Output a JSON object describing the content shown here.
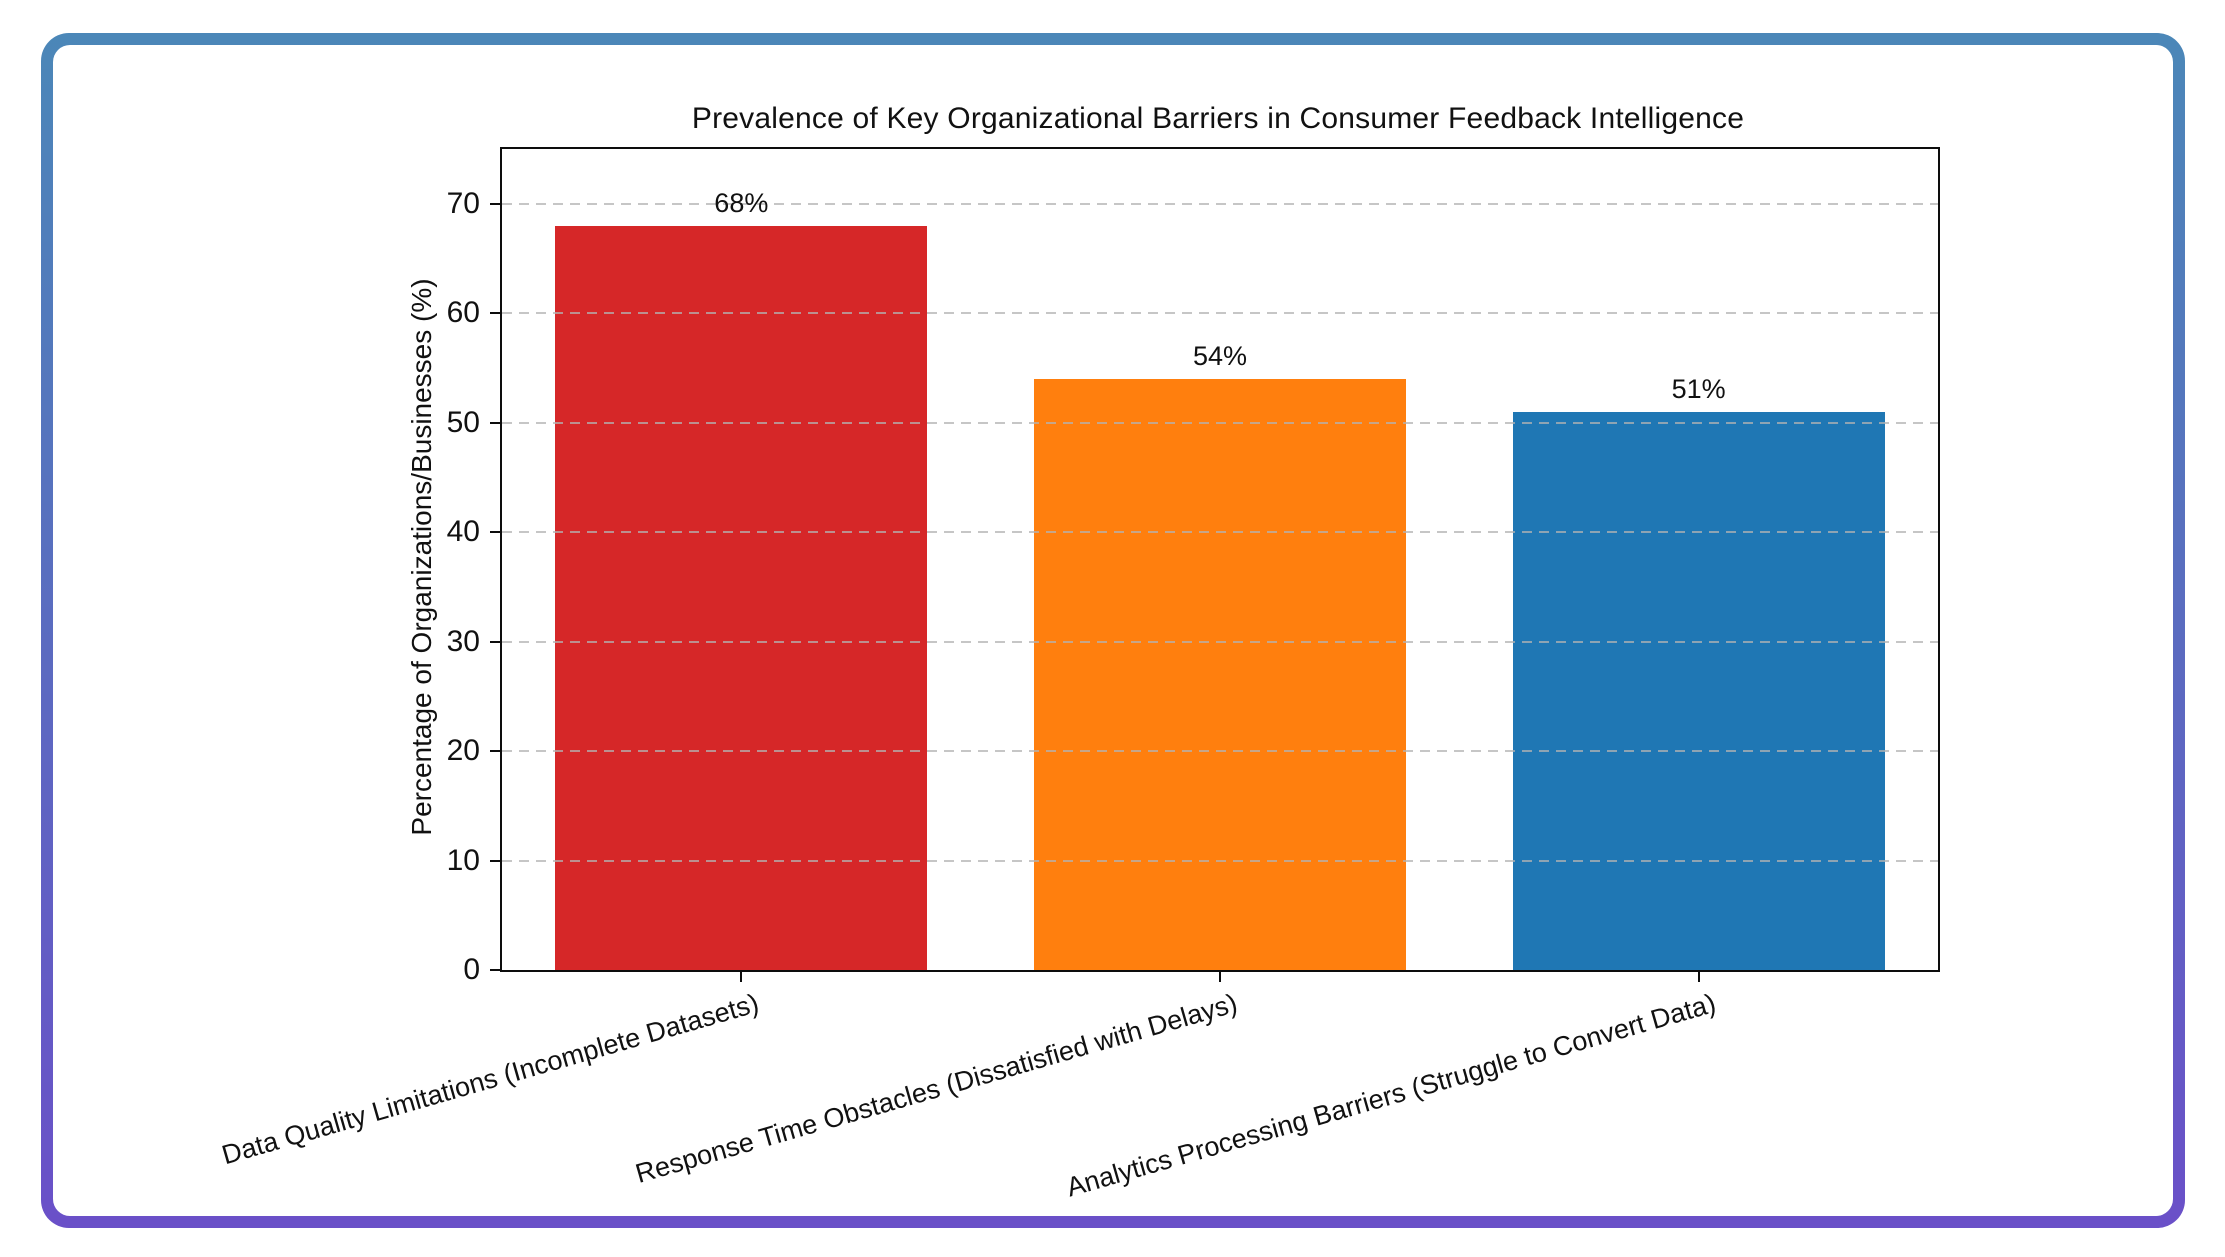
{
  "card": {
    "border_gradient_top": "#4b87b8",
    "border_gradient_bottom": "#6a50c8",
    "background": "#ffffff"
  },
  "chart_data": {
    "type": "bar",
    "title": "Prevalence of Key Organizational Barriers in Consumer Feedback Intelligence",
    "xlabel": "",
    "ylabel": "Percentage of Organizations/Businesses (%)",
    "categories": [
      "Data Quality Limitations (Incomplete Datasets)",
      "Response Time Obstacles (Dissatisfied with Delays)",
      "Analytics Processing Barriers (Struggle to Convert Data)"
    ],
    "values": [
      68,
      54,
      51
    ],
    "value_labels": [
      "68%",
      "54%",
      "51%"
    ],
    "bar_colors": [
      "#d62728",
      "#ff7f0e",
      "#1f77b4"
    ],
    "y_ticks": [
      0,
      10,
      20,
      30,
      40,
      50,
      60,
      70
    ],
    "ylim": [
      0,
      75
    ],
    "grid": "y-axis dashed gridlines, drawn over bars",
    "grid_color": "#b3b3b3",
    "x_label_rotation_deg": 16,
    "legend": "none"
  }
}
